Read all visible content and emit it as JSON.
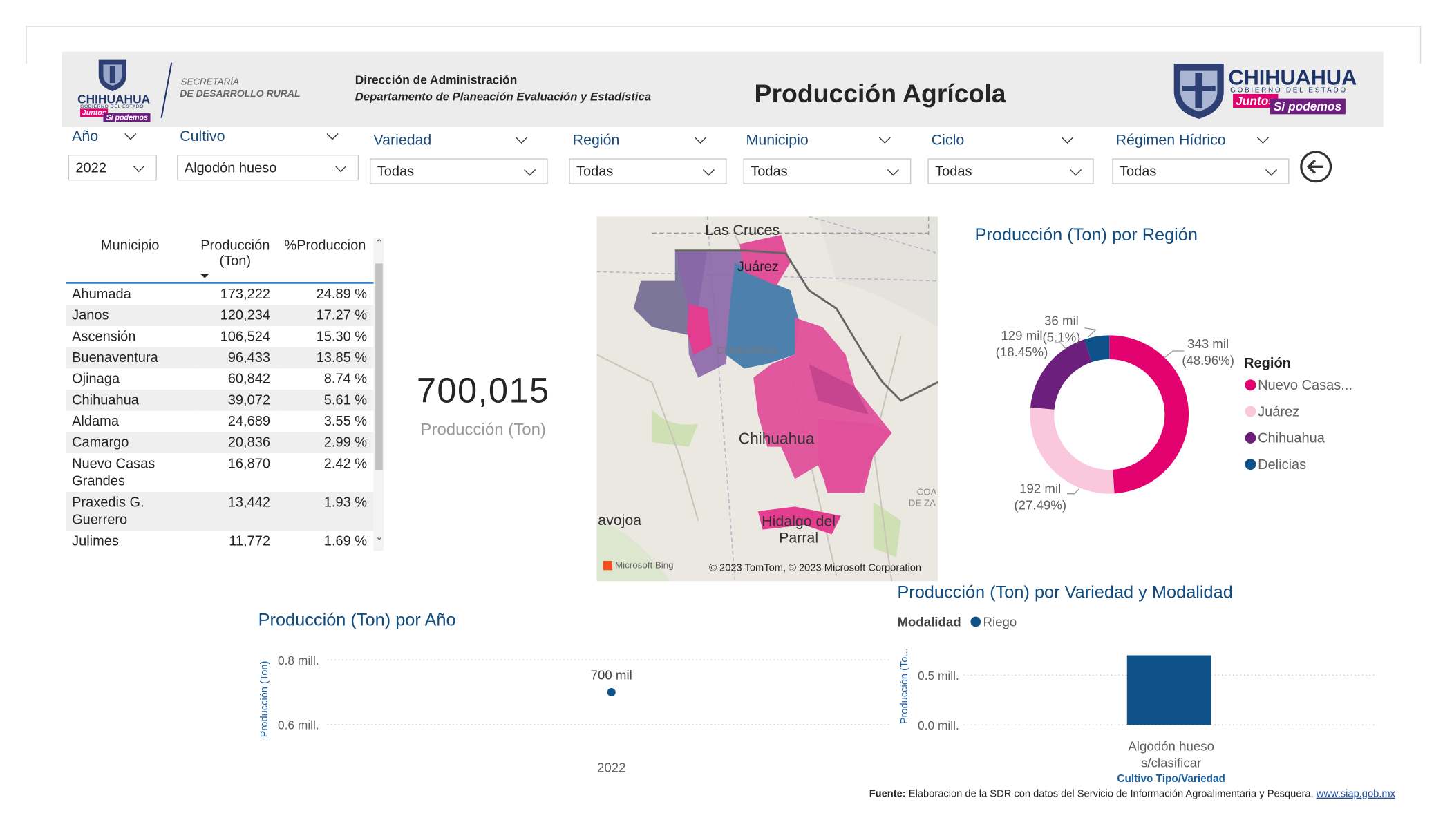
{
  "header": {
    "logo_left": {
      "name": "CHIHUAHUA",
      "subtitle": "GOBIERNO DEL ESTADO",
      "slogan_1": "Juntos",
      "slogan_2": "Sí podemos"
    },
    "secretaria_line_1": "SECRETARÍA",
    "secretaria_line_2": "DE DESARROLLO RURAL",
    "direccion": "Dirección de Administración",
    "departamento": "Departamento de Planeación Evaluación y Estadística",
    "title": "Producción Agrícola",
    "logo_right": {
      "name": "CHIHUAHUA",
      "subtitle": "GOBIERNO DEL ESTADO",
      "slogan_1": "Juntos",
      "slogan_2": "Sí podemos"
    }
  },
  "filters": [
    {
      "label": "Año",
      "value": "2022"
    },
    {
      "label": "Cultivo",
      "value": "Algodón hueso"
    },
    {
      "label": "Variedad",
      "value": "Todas"
    },
    {
      "label": "Región",
      "value": "Todas"
    },
    {
      "label": "Municipio",
      "value": "Todas"
    },
    {
      "label": "Ciclo",
      "value": "Todas"
    },
    {
      "label": "Régimen Hídrico",
      "value": "Todas"
    }
  ],
  "table": {
    "columns": [
      "Municipio",
      "Producción (Ton)",
      "%Produccion"
    ],
    "rows": [
      [
        "Ahumada",
        "173,222",
        "24.89 %"
      ],
      [
        "Janos",
        "120,234",
        "17.27 %"
      ],
      [
        "Ascensión",
        "106,524",
        "15.30 %"
      ],
      [
        "Buenaventura",
        "96,433",
        "13.85 %"
      ],
      [
        "Ojinaga",
        "60,842",
        "8.74 %"
      ],
      [
        "Chihuahua",
        "39,072",
        "5.61 %"
      ],
      [
        "Aldama",
        "24,689",
        "3.55 %"
      ],
      [
        "Camargo",
        "20,836",
        "2.99 %"
      ],
      [
        "Nuevo Casas Grandes",
        "16,870",
        "2.42 %"
      ],
      [
        "Praxedis G. Guerrero",
        "13,442",
        "1.93 %"
      ],
      [
        "Julimes",
        "11,772",
        "1.69 %"
      ]
    ]
  },
  "kpi": {
    "value": "700,015",
    "label": "Producción (Ton)"
  },
  "map": {
    "places": [
      "Las Cruces",
      "Juárez",
      "CHIHUAHUA",
      "Chihuahua",
      "avojoa",
      "Hidalgo del Parral",
      "COA",
      "DE ZA"
    ],
    "provider": "Microsoft Bing",
    "attribution": "© 2023 TomTom, © 2023 Microsoft Corporation"
  },
  "chart_data": [
    {
      "type": "donut",
      "title": "Producción (Ton) por Región",
      "legend_title": "Región",
      "categories": [
        "Nuevo Casas...",
        "Juárez",
        "Chihuahua",
        "Delicias"
      ],
      "values": [
        343,
        192,
        129,
        36
      ],
      "value_labels": [
        "343 mil",
        "192 mil",
        "129 mil",
        "36 mil"
      ],
      "percent_labels": [
        "(48.96%)",
        "(27.49%)",
        "(18.45%)",
        "(5.1%)"
      ],
      "colors": [
        "#e3006f",
        "#f9c8dd",
        "#6c1f7d",
        "#0f5289"
      ],
      "legend": "right"
    },
    {
      "type": "line",
      "title": "Producción (Ton) por Año",
      "y_label": "Producción (Ton)",
      "categories": [
        "2022"
      ],
      "values": [
        0.7
      ],
      "value_labels": [
        "700 mil"
      ],
      "color": "#0f5289",
      "ylim": [
        0.55,
        0.85
      ],
      "yticks": [
        {
          "value": 0.6,
          "label": "0.6 mill."
        },
        {
          "value": 0.8,
          "label": "0.8 mill."
        }
      ],
      "grid": true
    },
    {
      "type": "bar",
      "title": "Producción (Ton) por Variedad y Modalidad",
      "legend_title": "Modalidad",
      "y_label": "Producción (To...",
      "x_label": "Cultivo Tipo/Variedad",
      "categories": [
        "Algodón hueso s/clasificar"
      ],
      "series": [
        {
          "name": "Riego",
          "color": "#0f5289",
          "values": [
            0.7
          ]
        }
      ],
      "ylim": [
        0,
        0.75
      ],
      "yticks": [
        {
          "value": 0,
          "label": "0.0 mill."
        },
        {
          "value": 0.5,
          "label": "0.5 mill."
        }
      ],
      "grid": true,
      "legend": "top"
    }
  ],
  "footer": {
    "source_label": "Fuente:",
    "source_text": "Elaboracion de la SDR con datos del Servicio de Información Agroalimentaria y Pesquera,",
    "link": "www.siap.gob.mx"
  }
}
